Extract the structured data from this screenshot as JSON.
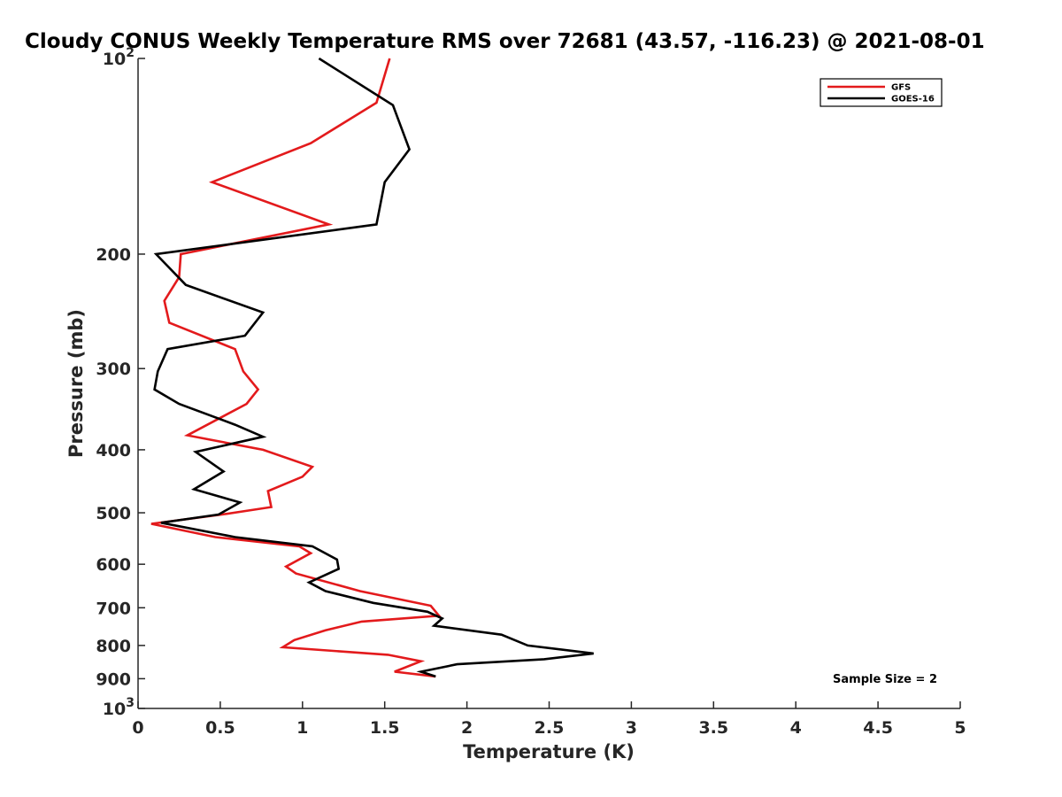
{
  "chart_data": {
    "type": "line",
    "title": "Cloudy CONUS Weekly Temperature RMS over 72681 (43.57, -116.23) @ 2021-08-01",
    "xlabel": "Temperature (K)",
    "ylabel": "Pressure (mb)",
    "xlim": [
      0,
      5
    ],
    "ylim": [
      100,
      1000
    ],
    "y_scale": "log",
    "y_reversed": true,
    "x_ticks": [
      0,
      0.5,
      1,
      1.5,
      2,
      2.5,
      3,
      3.5,
      4,
      4.5,
      5
    ],
    "x_tick_labels": [
      "0",
      "0.5",
      "1",
      "1.5",
      "2",
      "2.5",
      "3",
      "3.5",
      "4",
      "4.5",
      "5"
    ],
    "y_ticks": [
      100,
      200,
      300,
      400,
      500,
      600,
      700,
      800,
      900,
      1000
    ],
    "y_tick_labels": [
      {
        "base": "10",
        "exp": "2"
      },
      {
        "base": "200",
        "exp": ""
      },
      {
        "base": "300",
        "exp": ""
      },
      {
        "base": "400",
        "exp": ""
      },
      {
        "base": "500",
        "exp": ""
      },
      {
        "base": "600",
        "exp": ""
      },
      {
        "base": "700",
        "exp": ""
      },
      {
        "base": "800",
        "exp": ""
      },
      {
        "base": "900",
        "exp": ""
      },
      {
        "base": "10",
        "exp": "3"
      }
    ],
    "grid": false,
    "legend_position": "top-right",
    "annotation": "Sample Size = 2",
    "series": [
      {
        "name": "GFS",
        "color": "#e31a1c",
        "points": [
          [
            1.53,
            100
          ],
          [
            1.45,
            117
          ],
          [
            1.05,
            135
          ],
          [
            0.45,
            155
          ],
          [
            1.16,
            180
          ],
          [
            0.26,
            200
          ],
          [
            0.25,
            217
          ],
          [
            0.16,
            236
          ],
          [
            0.19,
            255
          ],
          [
            0.59,
            280
          ],
          [
            0.64,
            303
          ],
          [
            0.73,
            323
          ],
          [
            0.66,
            340
          ],
          [
            0.3,
            380
          ],
          [
            0.76,
            400
          ],
          [
            1.06,
            425
          ],
          [
            1.0,
            440
          ],
          [
            0.79,
            463
          ],
          [
            0.81,
            490
          ],
          [
            0.51,
            503
          ],
          [
            0.08,
            520
          ],
          [
            0.47,
            545
          ],
          [
            0.98,
            563
          ],
          [
            1.05,
            577
          ],
          [
            0.9,
            605
          ],
          [
            0.96,
            620
          ],
          [
            1.35,
            660
          ],
          [
            1.78,
            695
          ],
          [
            1.83,
            720
          ],
          [
            1.36,
            735
          ],
          [
            1.14,
            758
          ],
          [
            0.95,
            785
          ],
          [
            0.88,
            805
          ],
          [
            1.52,
            827
          ],
          [
            1.72,
            846
          ],
          [
            1.56,
            878
          ],
          [
            1.81,
            893
          ]
        ]
      },
      {
        "name": "GOES-16",
        "color": "#000000",
        "points": [
          [
            1.1,
            100
          ],
          [
            1.55,
            118
          ],
          [
            1.65,
            138
          ],
          [
            1.5,
            155
          ],
          [
            1.45,
            180
          ],
          [
            0.11,
            200
          ],
          [
            0.29,
            223
          ],
          [
            0.76,
            246
          ],
          [
            0.65,
            267
          ],
          [
            0.18,
            280
          ],
          [
            0.12,
            303
          ],
          [
            0.1,
            323
          ],
          [
            0.25,
            340
          ],
          [
            0.59,
            366
          ],
          [
            0.76,
            382
          ],
          [
            0.35,
            403
          ],
          [
            0.52,
            432
          ],
          [
            0.34,
            460
          ],
          [
            0.62,
            482
          ],
          [
            0.49,
            503
          ],
          [
            0.14,
            518
          ],
          [
            0.59,
            545
          ],
          [
            1.06,
            563
          ],
          [
            1.21,
            590
          ],
          [
            1.22,
            610
          ],
          [
            1.04,
            640
          ],
          [
            1.14,
            660
          ],
          [
            1.43,
            688
          ],
          [
            1.76,
            710
          ],
          [
            1.85,
            727
          ],
          [
            1.8,
            746
          ],
          [
            2.21,
            770
          ],
          [
            2.37,
            800
          ],
          [
            2.77,
            823
          ],
          [
            2.47,
            840
          ],
          [
            1.94,
            855
          ],
          [
            1.72,
            878
          ],
          [
            1.81,
            893
          ]
        ]
      }
    ]
  }
}
